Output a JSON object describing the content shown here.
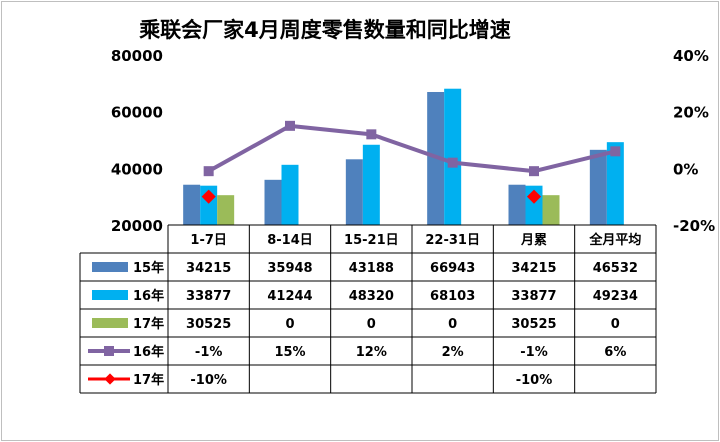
{
  "chart_data": {
    "type": "bar",
    "title": "乘联会厂家4月周度零售数量和同比增速",
    "categories": [
      "1-7日",
      "8-14日",
      "15-21日",
      "22-31日",
      "月累",
      "全月平均"
    ],
    "left_axis": {
      "ticks": [
        "80000",
        "60000",
        "40000",
        "20000"
      ],
      "ylim": [
        20000,
        80000
      ]
    },
    "right_axis": {
      "ticks": [
        "40%",
        "20%",
        "0%",
        "-20%"
      ],
      "ylim": [
        -20,
        40
      ]
    },
    "series": [
      {
        "name": "15年",
        "kind": "bar",
        "color": "#4f81bd",
        "values": [
          34215,
          35948,
          43188,
          66943,
          34215,
          46532
        ],
        "labels": [
          "34215",
          "35948",
          "43188",
          "66943",
          "34215",
          "46532"
        ]
      },
      {
        "name": "16年",
        "kind": "bar",
        "color": "#00b0f0",
        "values": [
          33877,
          41244,
          48320,
          68103,
          33877,
          49234
        ],
        "labels": [
          "33877",
          "41244",
          "48320",
          "68103",
          "33877",
          "49234"
        ]
      },
      {
        "name": "17年",
        "kind": "bar",
        "color": "#9bbb59",
        "values": [
          30525,
          0,
          0,
          0,
          30525,
          0
        ],
        "labels": [
          "30525",
          "0",
          "0",
          "0",
          "30525",
          "0"
        ]
      },
      {
        "name": "16年",
        "kind": "line",
        "axis": "right",
        "color": "#8064a2",
        "values": [
          -1,
          15,
          12,
          2,
          -1,
          6
        ],
        "labels": [
          "-1%",
          "15%",
          "12%",
          "2%",
          "-1%",
          "6%"
        ]
      },
      {
        "name": "17年",
        "kind": "line",
        "axis": "right",
        "color": "#ff0000",
        "values": [
          -10,
          null,
          null,
          null,
          -10,
          null
        ],
        "labels": [
          "-10%",
          "",
          "",
          "",
          "-10%",
          ""
        ]
      }
    ],
    "grid": false,
    "legend": "table-left"
  }
}
